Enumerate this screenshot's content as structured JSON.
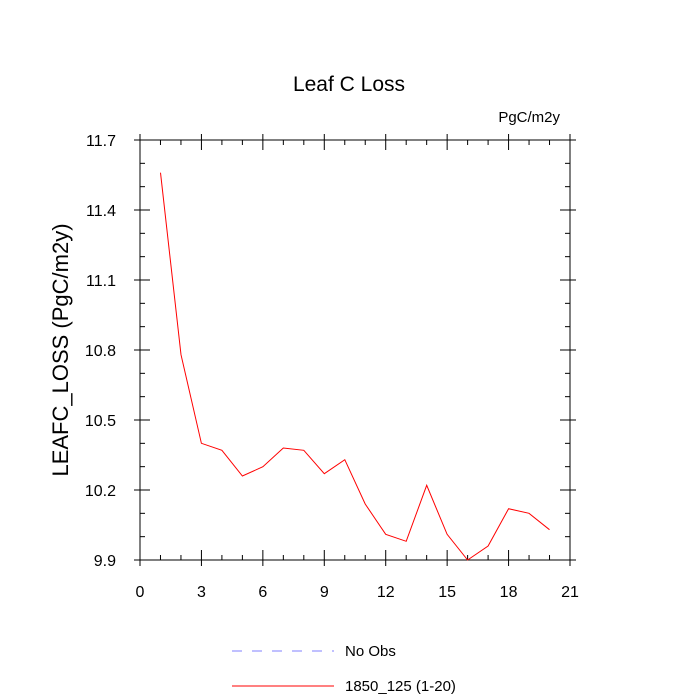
{
  "chart_data": {
    "type": "line",
    "title": "Leaf C Loss",
    "units_label": "PgC/m2y",
    "xlabel": "",
    "ylabel": "LEAFC_LOSS  (PgC/m2y)",
    "xlim": [
      0,
      21
    ],
    "ylim": [
      9.9,
      11.7
    ],
    "x_ticks": [
      0,
      3,
      6,
      9,
      12,
      15,
      18,
      21
    ],
    "x_tick_labels": [
      "0",
      "3",
      "6",
      "9",
      "12",
      "15",
      "18",
      "21"
    ],
    "y_ticks": [
      9.9,
      10.2,
      10.5,
      10.8,
      11.1,
      11.4,
      11.7
    ],
    "y_tick_labels": [
      "9.9",
      "10.2",
      "10.5",
      "10.8",
      "11.1",
      "11.4",
      "11.7"
    ],
    "x_minor_step": 1,
    "y_minor_step": 0.1,
    "grid": false,
    "legend_position": "bottom-center",
    "series": [
      {
        "name": "No Obs",
        "color": "#8080ff",
        "dash": true,
        "x": [],
        "y": []
      },
      {
        "name": "1850_125 (1-20)",
        "color": "#ff0000",
        "dash": false,
        "x": [
          1,
          2,
          3,
          4,
          5,
          6,
          7,
          8,
          9,
          10,
          11,
          12,
          13,
          14,
          15,
          16,
          17,
          18,
          19,
          20
        ],
        "y": [
          11.56,
          10.78,
          10.4,
          10.37,
          10.26,
          10.3,
          10.38,
          10.37,
          10.27,
          10.33,
          10.14,
          10.01,
          9.98,
          10.22,
          10.01,
          9.9,
          9.96,
          10.12,
          10.1,
          10.03
        ]
      }
    ]
  }
}
